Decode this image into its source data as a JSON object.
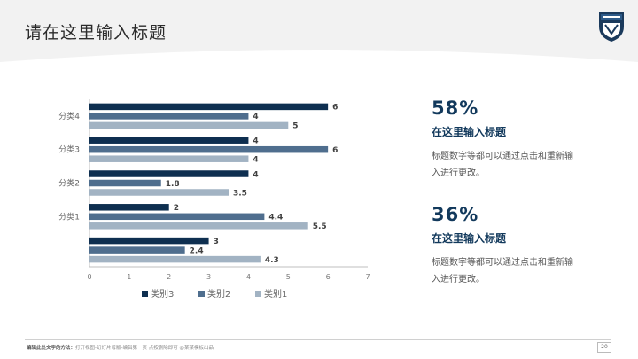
{
  "slide": {
    "title": "请在这里输入标题"
  },
  "chart_data": {
    "type": "bar",
    "orientation": "horizontal",
    "categories": [
      "",
      "分类1",
      "分类2",
      "分类3",
      "分类4"
    ],
    "series": [
      {
        "name": "类别3",
        "color": "#0e2f50",
        "values": [
          3,
          2,
          4,
          4,
          6
        ]
      },
      {
        "name": "类别2",
        "color": "#4f6e8e",
        "values": [
          2.4,
          4.4,
          1.8,
          6,
          4
        ]
      },
      {
        "name": "类别1",
        "color": "#a2b3c3",
        "values": [
          4.3,
          5.5,
          3.5,
          4,
          5
        ]
      }
    ],
    "xlim": [
      0,
      7
    ],
    "xticks": [
      0,
      1,
      2,
      3,
      4,
      5,
      6,
      7
    ],
    "legend_position": "bottom",
    "grid": false
  },
  "stats": [
    {
      "value": "58%",
      "heading": "在这里输入标题",
      "description": "标题数字等都可以通过点击和重新输入进行更改。"
    },
    {
      "value": "36%",
      "heading": "在这里输入标题",
      "description": "标题数字等都可以通过点击和重新输入进行更改。"
    }
  ],
  "footer": {
    "label": "编辑此处文字的方法：",
    "text": "打开视图-幻灯片母版-编辑第一页 点按删除即可 @某某模板出品",
    "page_number": "20"
  },
  "icons": {
    "logo": "university-crest-icon"
  }
}
